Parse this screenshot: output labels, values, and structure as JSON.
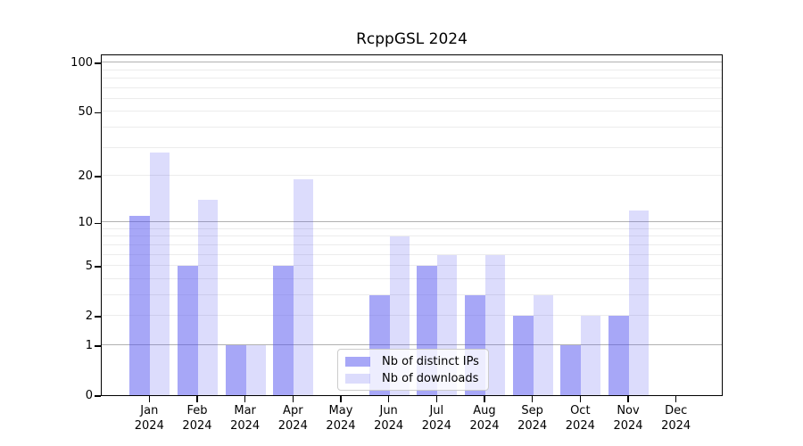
{
  "title": "RcppGSL 2024",
  "chart_data": {
    "type": "bar",
    "title": "RcppGSL 2024",
    "categories": [
      "Jan 2024",
      "Feb 2024",
      "Mar 2024",
      "Apr 2024",
      "May 2024",
      "Jun 2024",
      "Jul 2024",
      "Aug 2024",
      "Sep 2024",
      "Oct 2024",
      "Nov 2024",
      "Dec 2024"
    ],
    "series": [
      {
        "name": "Nb of distinct IPs",
        "color": "rgba(80,80,240,0.5)",
        "values": [
          11,
          5,
          1,
          5,
          0,
          3,
          5,
          3,
          2,
          1,
          2,
          0
        ]
      },
      {
        "name": "Nb of downloads",
        "color": "rgba(80,80,240,0.2)",
        "values": [
          28,
          14,
          1,
          19,
          0,
          8,
          6,
          6,
          3,
          2,
          12,
          0
        ]
      }
    ],
    "yscale": "log1p",
    "ylim": [
      0,
      100
    ],
    "yticks": [
      0,
      1,
      2,
      5,
      10,
      20,
      50,
      100
    ],
    "grid": {
      "major": [
        1,
        10,
        100
      ],
      "minor": [
        2,
        3,
        4,
        5,
        6,
        7,
        8,
        9,
        20,
        30,
        40,
        50,
        60,
        70,
        80,
        90
      ]
    },
    "legend_position": "bottom-center",
    "colors": {
      "grid_major": "#b1b1b1",
      "grid_minor": "#ececec",
      "frame": "#000000",
      "background": "#ffffff"
    }
  }
}
